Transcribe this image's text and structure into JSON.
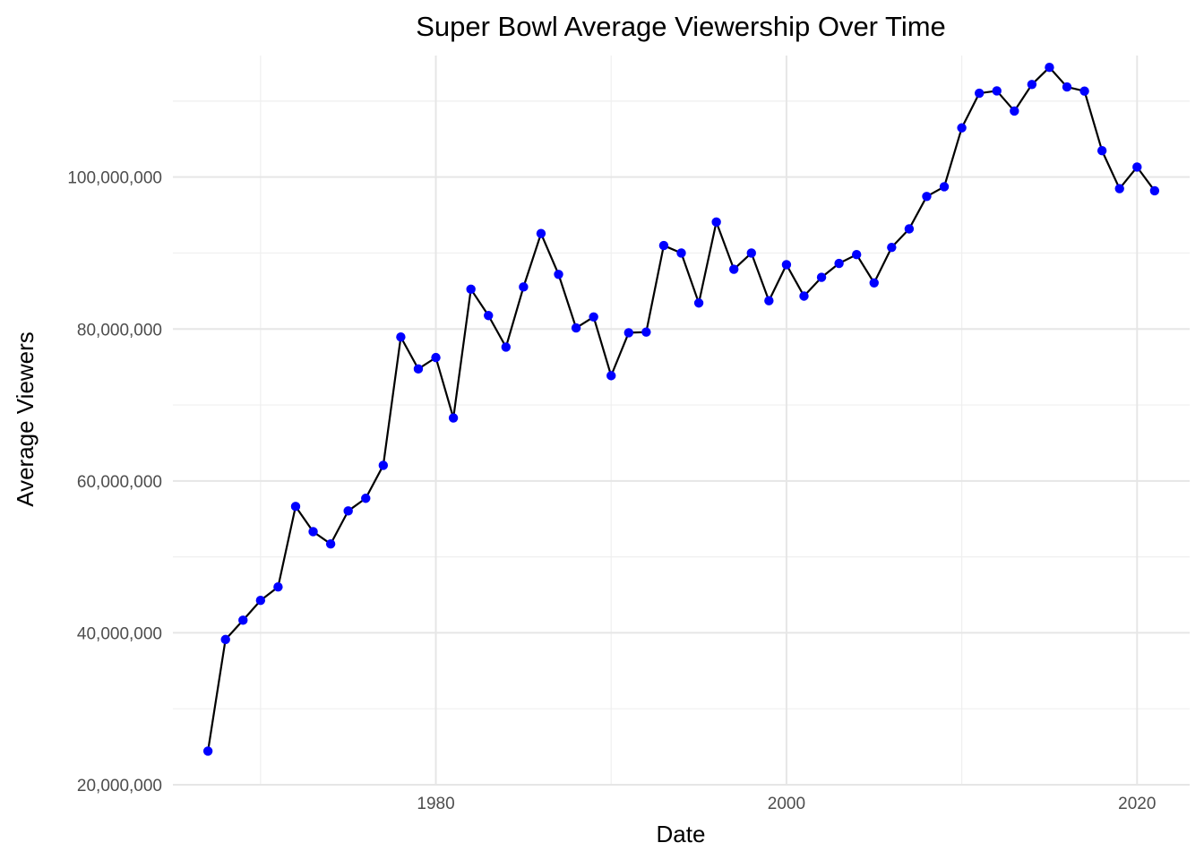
{
  "chart_data": {
    "type": "line",
    "title": "Super Bowl Average Viewership Over Time",
    "xlabel": "Date",
    "ylabel": "Average Viewers",
    "x_ticks": [
      1980,
      2000,
      2020
    ],
    "x_tick_labels": [
      "1980",
      "2000",
      "2020"
    ],
    "y_ticks": [
      20000000,
      40000000,
      60000000,
      80000000,
      100000000
    ],
    "y_tick_labels": [
      "20,000,000",
      "40,000,000",
      "60,000,000",
      "80,000,000",
      "100,000,000"
    ],
    "xlim": [
      1965,
      2023
    ],
    "ylim": [
      20000000,
      116000000
    ],
    "grid": true,
    "legend": "none",
    "line_color": "#000000",
    "point_color": "#0000ff",
    "x": [
      1967,
      1968,
      1969,
      1970,
      1971,
      1972,
      1973,
      1974,
      1975,
      1976,
      1977,
      1978,
      1979,
      1980,
      1981,
      1982,
      1983,
      1984,
      1985,
      1986,
      1987,
      1988,
      1989,
      1990,
      1991,
      1992,
      1993,
      1994,
      1995,
      1996,
      1997,
      1998,
      1999,
      2000,
      2001,
      2002,
      2003,
      2004,
      2005,
      2006,
      2007,
      2008,
      2009,
      2010,
      2011,
      2012,
      2013,
      2014,
      2015,
      2016,
      2017,
      2018,
      2019,
      2020,
      2021
    ],
    "values": [
      24430000,
      39120000,
      41660000,
      44270000,
      46040000,
      56640000,
      53320000,
      51700000,
      56050000,
      57710000,
      62050000,
      78940000,
      74740000,
      76240000,
      68290000,
      85240000,
      81770000,
      77620000,
      85530000,
      92570000,
      87190000,
      80140000,
      81590000,
      73852000,
      79510000,
      79590000,
      90990000,
      90000000,
      83420000,
      94080000,
      87870000,
      90000000,
      83720000,
      88465000,
      84335000,
      86801000,
      88637000,
      89795000,
      86072000,
      90745000,
      93184000,
      97448000,
      98732000,
      106476000,
      111041000,
      111346000,
      108693000,
      112191000,
      114442000,
      111864000,
      111319000,
      103471000,
      98481000,
      101319000,
      98202000
    ]
  }
}
